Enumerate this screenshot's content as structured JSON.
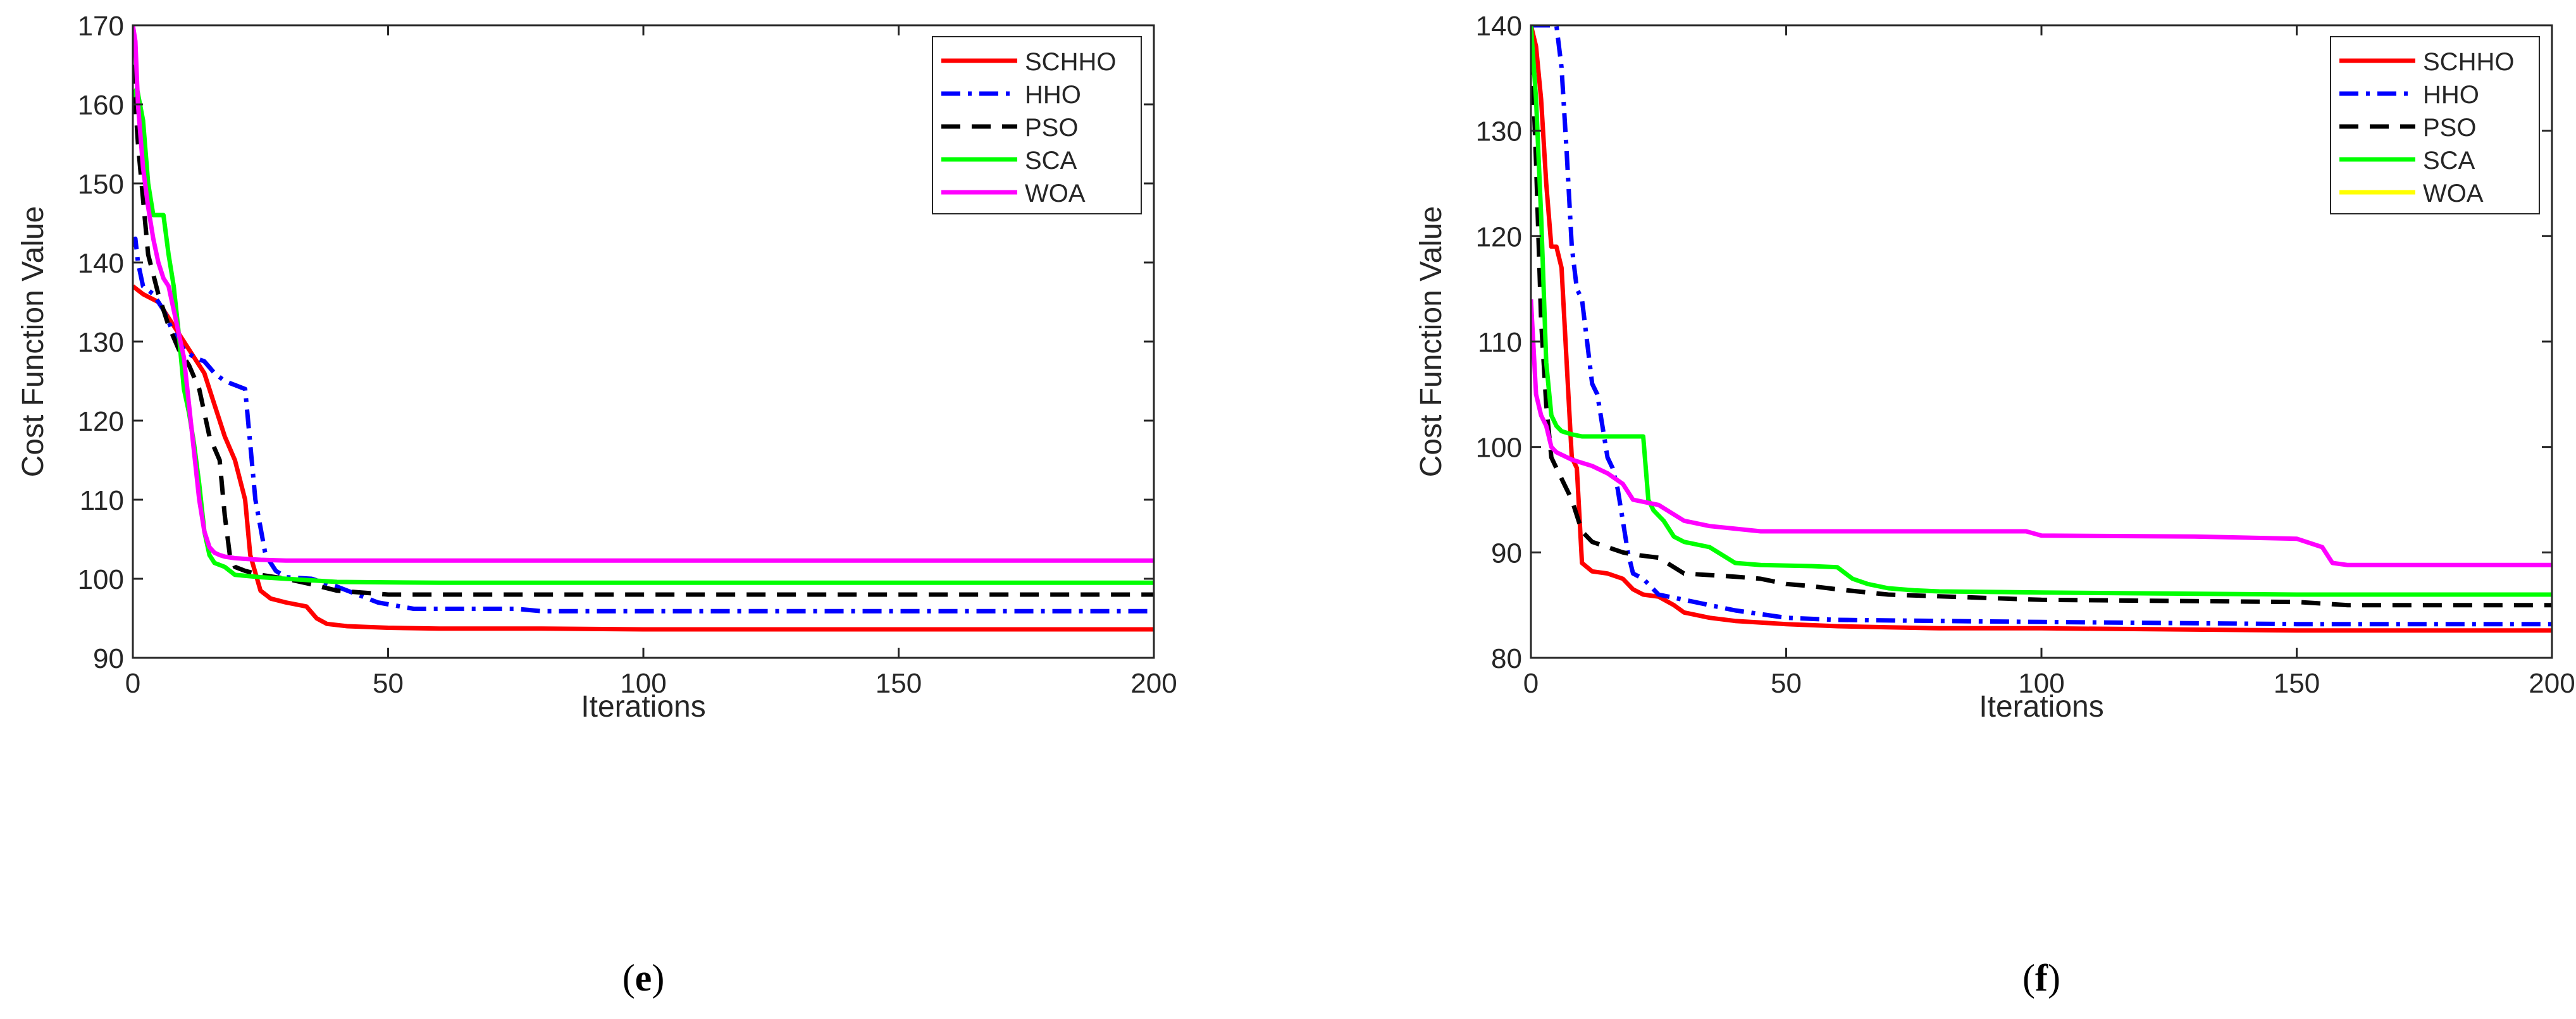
{
  "chart_data": [
    {
      "type": "line",
      "panel_label": "e",
      "xlabel": "Iterations",
      "ylabel": "Cost Function Value",
      "xlim": [
        0,
        200
      ],
      "ylim": [
        90,
        170
      ],
      "xticks": [
        0,
        50,
        100,
        150,
        200
      ],
      "yticks": [
        90,
        100,
        110,
        120,
        130,
        140,
        150,
        160,
        170
      ],
      "grid": false,
      "legend_position": "top-right",
      "series": [
        {
          "name": "SCHHO",
          "color": "#ff0000",
          "dash": "solid",
          "x": [
            0,
            2,
            5,
            8,
            10,
            12,
            14,
            16,
            18,
            20,
            22,
            23,
            25,
            27,
            30,
            34,
            36,
            38,
            42,
            50,
            60,
            80,
            100,
            130,
            160,
            200
          ],
          "y": [
            137,
            136,
            135,
            132,
            130,
            128,
            126,
            122,
            118,
            115,
            110,
            103,
            98.5,
            97.5,
            97,
            96.5,
            95,
            94.3,
            94,
            93.8,
            93.7,
            93.7,
            93.6,
            93.6,
            93.6,
            93.6
          ]
        },
        {
          "name": "HHO",
          "color": "#0000ff",
          "dash": "dashdot",
          "x": [
            0,
            0.5,
            1,
            2,
            4,
            6,
            8,
            10,
            12,
            14,
            16,
            18,
            20,
            22,
            24,
            26,
            28,
            30,
            35,
            40,
            44,
            48,
            55,
            65,
            75,
            80,
            90,
            100,
            150,
            200
          ],
          "y": [
            142,
            143,
            140,
            137,
            136,
            134,
            131,
            129,
            128,
            127.5,
            126,
            125,
            124.5,
            124,
            110,
            103,
            101,
            100.2,
            100,
            99,
            98,
            97,
            96.2,
            96.2,
            96.2,
            95.9,
            95.9,
            95.9,
            95.9,
            95.9
          ]
        },
        {
          "name": "PSO",
          "color": "#000000",
          "dash": "dashed",
          "x": [
            0,
            1,
            2,
            3,
            5,
            7,
            9,
            11,
            13,
            15,
            17,
            18,
            19,
            20,
            22,
            25,
            30,
            35,
            40,
            50,
            60,
            100,
            200
          ],
          "y": [
            165,
            155,
            148,
            141,
            136,
            132,
            129,
            127,
            124,
            118,
            115,
            108,
            103,
            101.5,
            101,
            100.5,
            100,
            99.3,
            98.5,
            98,
            98,
            98,
            98
          ]
        },
        {
          "name": "SCA",
          "color": "#00ff00",
          "dash": "solid",
          "x": [
            0,
            0.8,
            2,
            3,
            4,
            5,
            6,
            7,
            8,
            9,
            10,
            11,
            12,
            13,
            14,
            15,
            16,
            18,
            20,
            25,
            30,
            40,
            60,
            100,
            200
          ],
          "y": [
            161,
            162,
            158,
            150,
            146,
            146,
            146,
            141,
            137,
            131,
            124,
            121,
            117,
            112,
            106,
            103,
            102,
            101.5,
            100.5,
            100.2,
            100,
            99.6,
            99.5,
            99.5,
            99.5
          ]
        },
        {
          "name": "WOA",
          "color": "#ff00ff",
          "dash": "solid",
          "x": [
            0,
            0.5,
            1,
            2,
            3,
            4,
            5,
            6,
            7,
            8,
            9,
            10,
            11,
            12,
            13,
            14,
            15,
            16,
            17,
            18,
            20,
            25,
            30,
            40,
            60,
            100,
            200
          ],
          "y": [
            170,
            168,
            160,
            152,
            147,
            143,
            140,
            138,
            137,
            134,
            131,
            128,
            122,
            116,
            110,
            106,
            104,
            103.3,
            103,
            102.8,
            102.6,
            102.4,
            102.3,
            102.3,
            102.3,
            102.3,
            102.3
          ]
        }
      ]
    },
    {
      "type": "line",
      "panel_label": "f",
      "xlabel": "Iterations",
      "ylabel": "Cost Function Value",
      "xlim": [
        0,
        200
      ],
      "ylim": [
        80,
        140
      ],
      "xticks": [
        0,
        50,
        100,
        150,
        200
      ],
      "yticks": [
        80,
        90,
        100,
        110,
        120,
        130,
        140
      ],
      "grid": false,
      "legend_position": "top-right",
      "series": [
        {
          "name": "SCHHO",
          "color": "#ff0000",
          "dash": "solid",
          "x": [
            0,
            1,
            2,
            3,
            4,
            5,
            6,
            7,
            8,
            9,
            10,
            12,
            15,
            18,
            20,
            22,
            25,
            28,
            30,
            35,
            40,
            50,
            60,
            70,
            80,
            100,
            150,
            200
          ],
          "y": [
            140,
            138,
            133,
            125,
            119,
            119,
            117,
            108,
            99,
            98,
            89,
            88.2,
            88,
            87.5,
            86.5,
            86,
            85.8,
            85,
            84.3,
            83.8,
            83.5,
            83.2,
            83,
            82.9,
            82.8,
            82.8,
            82.6,
            82.6
          ]
        },
        {
          "name": "HHO",
          "color": "#0000ff",
          "dash": "dashdot",
          "x": [
            0,
            3,
            4,
            5,
            6,
            7,
            8,
            9,
            10,
            12,
            13,
            15,
            16,
            17,
            18,
            19,
            20,
            22,
            25,
            30,
            35,
            40,
            50,
            60,
            80,
            100,
            150,
            200
          ],
          "y": [
            140,
            140,
            140,
            140,
            136,
            128,
            119,
            115,
            114,
            106,
            105,
            99,
            98,
            96,
            93,
            90,
            88,
            87.5,
            86,
            85.5,
            85,
            84.5,
            83.8,
            83.6,
            83.5,
            83.4,
            83.2,
            83.2
          ]
        },
        {
          "name": "PSO",
          "color": "#000000",
          "dash": "dashed",
          "x": [
            0,
            1,
            2,
            3,
            4,
            5,
            6,
            8,
            10,
            12,
            15,
            18,
            20,
            25,
            30,
            40,
            45,
            50,
            55,
            60,
            70,
            100,
            150,
            160,
            200
          ],
          "y": [
            140,
            127,
            112,
            104,
            99,
            98,
            97,
            95,
            92,
            91,
            90.5,
            90,
            89.8,
            89.5,
            88,
            87.7,
            87.5,
            87,
            86.8,
            86.5,
            86,
            85.5,
            85.3,
            85,
            85
          ]
        },
        {
          "name": "SCA",
          "color": "#00ff00",
          "dash": "solid",
          "x": [
            0,
            1,
            2,
            3,
            4,
            5,
            6,
            8,
            10,
            15,
            20,
            22,
            23,
            24,
            26,
            28,
            30,
            35,
            40,
            45,
            55,
            60,
            63,
            66,
            70,
            75,
            80,
            100,
            150,
            200
          ],
          "y": [
            140,
            133,
            122,
            108,
            103,
            102,
            101.5,
            101.2,
            101,
            101,
            101,
            101,
            95,
            94,
            93,
            91.5,
            91,
            90.5,
            89,
            88.8,
            88.7,
            88.6,
            87.5,
            87,
            86.6,
            86.4,
            86.3,
            86.2,
            86,
            86
          ]
        },
        {
          "name": "WOA",
          "color": "#ff00ff",
          "dash": "solid",
          "x": [
            0,
            1,
            2,
            3,
            4,
            5,
            8,
            10,
            12,
            15,
            18,
            20,
            25,
            30,
            35,
            45,
            60,
            80,
            97,
            100,
            130,
            150,
            155,
            157,
            160,
            200
          ],
          "y": [
            114,
            105,
            103,
            102,
            100,
            99.5,
            98.8,
            98.5,
            98.2,
            97.5,
            96.5,
            95,
            94.5,
            93,
            92.5,
            92,
            92,
            92,
            92,
            91.6,
            91.5,
            91.3,
            90.5,
            89,
            88.8,
            88.8
          ]
        }
      ],
      "legend_extra": [
        {
          "name": "WOA",
          "color": "#ffff00"
        }
      ]
    }
  ]
}
